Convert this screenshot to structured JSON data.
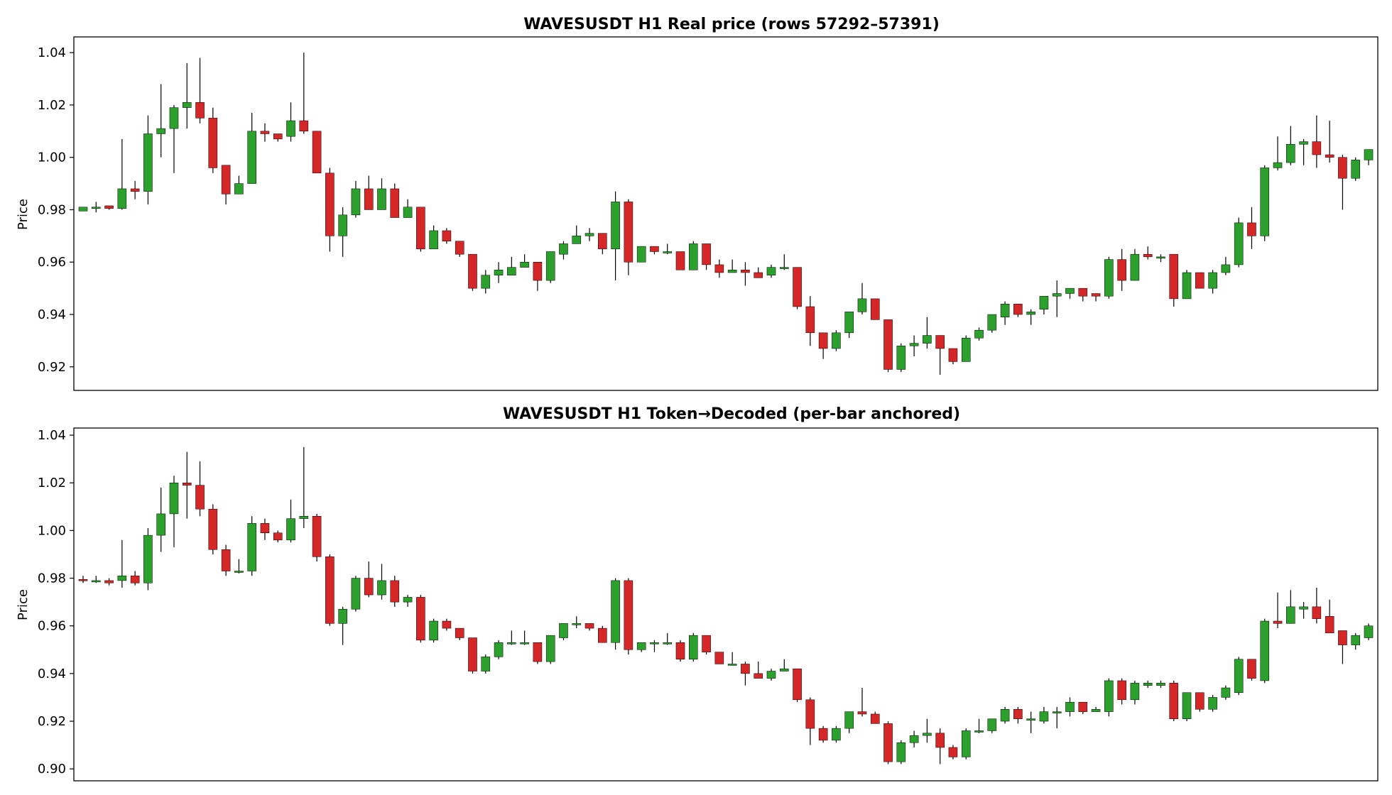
{
  "colors": {
    "up": "#2ca02c",
    "down": "#d62728",
    "wick": "#000000"
  },
  "chart_data": [
    {
      "type": "candlestick",
      "title": "WAVESUSDT H1  Real price  (rows 57292–57391)",
      "ylabel": "Price",
      "ylim": [
        0.911,
        1.046
      ],
      "yticks": [
        0.92,
        0.94,
        0.96,
        0.98,
        1.0,
        1.02,
        1.04
      ],
      "ytick_labels": [
        "0.92",
        "0.94",
        "0.96",
        "0.98",
        "1.00",
        "1.02",
        "1.04"
      ],
      "grid": false,
      "candles": [
        [
          0.9795,
          0.981,
          0.9795,
          0.981
        ],
        [
          0.981,
          0.983,
          0.979,
          0.981
        ],
        [
          0.9815,
          0.9815,
          0.98,
          0.9805
        ],
        [
          0.9805,
          1.007,
          0.98,
          0.988
        ],
        [
          0.988,
          0.991,
          0.984,
          0.987
        ],
        [
          0.987,
          1.016,
          0.982,
          1.009
        ],
        [
          1.009,
          1.028,
          1.0,
          1.011
        ],
        [
          1.011,
          1.02,
          0.994,
          1.019
        ],
        [
          1.019,
          1.036,
          1.011,
          1.021
        ],
        [
          1.021,
          1.038,
          1.013,
          1.015
        ],
        [
          1.015,
          1.019,
          0.994,
          0.996
        ],
        [
          0.997,
          0.997,
          0.982,
          0.986
        ],
        [
          0.986,
          0.993,
          0.986,
          0.99
        ],
        [
          0.99,
          1.017,
          0.99,
          1.01
        ],
        [
          1.01,
          1.013,
          1.006,
          1.009
        ],
        [
          1.009,
          1.009,
          1.006,
          1.007
        ],
        [
          1.008,
          1.021,
          1.006,
          1.014
        ],
        [
          1.014,
          1.04,
          1.009,
          1.01
        ],
        [
          1.01,
          1.01,
          0.994,
          0.994
        ],
        [
          0.994,
          0.996,
          0.964,
          0.97
        ],
        [
          0.97,
          0.981,
          0.962,
          0.978
        ],
        [
          0.978,
          0.991,
          0.977,
          0.988
        ],
        [
          0.988,
          0.993,
          0.98,
          0.98
        ],
        [
          0.98,
          0.992,
          0.98,
          0.988
        ],
        [
          0.988,
          0.99,
          0.977,
          0.977
        ],
        [
          0.977,
          0.984,
          0.977,
          0.981
        ],
        [
          0.981,
          0.981,
          0.964,
          0.965
        ],
        [
          0.965,
          0.974,
          0.965,
          0.972
        ],
        [
          0.972,
          0.973,
          0.967,
          0.968
        ],
        [
          0.968,
          0.968,
          0.962,
          0.963
        ],
        [
          0.963,
          0.963,
          0.949,
          0.95
        ],
        [
          0.95,
          0.957,
          0.948,
          0.955
        ],
        [
          0.955,
          0.96,
          0.952,
          0.957
        ],
        [
          0.955,
          0.962,
          0.955,
          0.958
        ],
        [
          0.958,
          0.963,
          0.958,
          0.96
        ],
        [
          0.96,
          0.96,
          0.949,
          0.953
        ],
        [
          0.953,
          0.964,
          0.952,
          0.964
        ],
        [
          0.963,
          0.968,
          0.961,
          0.967
        ],
        [
          0.967,
          0.974,
          0.967,
          0.97
        ],
        [
          0.97,
          0.973,
          0.968,
          0.971
        ],
        [
          0.971,
          0.971,
          0.963,
          0.965
        ],
        [
          0.965,
          0.987,
          0.953,
          0.983
        ],
        [
          0.983,
          0.984,
          0.955,
          0.96
        ],
        [
          0.96,
          0.966,
          0.96,
          0.966
        ],
        [
          0.966,
          0.966,
          0.963,
          0.964
        ],
        [
          0.964,
          0.967,
          0.963,
          0.964
        ],
        [
          0.964,
          0.964,
          0.957,
          0.957
        ],
        [
          0.957,
          0.968,
          0.957,
          0.967
        ],
        [
          0.967,
          0.967,
          0.957,
          0.959
        ],
        [
          0.959,
          0.961,
          0.954,
          0.956
        ],
        [
          0.956,
          0.961,
          0.956,
          0.957
        ],
        [
          0.957,
          0.96,
          0.951,
          0.956
        ],
        [
          0.956,
          0.958,
          0.954,
          0.954
        ],
        [
          0.955,
          0.959,
          0.954,
          0.958
        ],
        [
          0.958,
          0.963,
          0.957,
          0.958
        ],
        [
          0.958,
          0.958,
          0.942,
          0.943
        ],
        [
          0.943,
          0.947,
          0.928,
          0.933
        ],
        [
          0.933,
          0.933,
          0.923,
          0.927
        ],
        [
          0.927,
          0.934,
          0.926,
          0.933
        ],
        [
          0.933,
          0.941,
          0.931,
          0.941
        ],
        [
          0.941,
          0.952,
          0.94,
          0.946
        ],
        [
          0.946,
          0.946,
          0.938,
          0.938
        ],
        [
          0.938,
          0.938,
          0.918,
          0.919
        ],
        [
          0.919,
          0.929,
          0.918,
          0.928
        ],
        [
          0.928,
          0.932,
          0.924,
          0.929
        ],
        [
          0.929,
          0.939,
          0.927,
          0.932
        ],
        [
          0.932,
          0.932,
          0.917,
          0.927
        ],
        [
          0.927,
          0.927,
          0.921,
          0.922
        ],
        [
          0.922,
          0.932,
          0.922,
          0.931
        ],
        [
          0.931,
          0.935,
          0.93,
          0.934
        ],
        [
          0.934,
          0.94,
          0.933,
          0.94
        ],
        [
          0.939,
          0.945,
          0.936,
          0.944
        ],
        [
          0.944,
          0.944,
          0.939,
          0.94
        ],
        [
          0.94,
          0.942,
          0.936,
          0.941
        ],
        [
          0.942,
          0.947,
          0.94,
          0.947
        ],
        [
          0.947,
          0.953,
          0.939,
          0.948
        ],
        [
          0.948,
          0.95,
          0.946,
          0.95
        ],
        [
          0.95,
          0.95,
          0.945,
          0.947
        ],
        [
          0.948,
          0.948,
          0.945,
          0.947
        ],
        [
          0.947,
          0.962,
          0.946,
          0.961
        ],
        [
          0.961,
          0.965,
          0.949,
          0.953
        ],
        [
          0.953,
          0.965,
          0.953,
          0.963
        ],
        [
          0.963,
          0.966,
          0.961,
          0.962
        ],
        [
          0.962,
          0.963,
          0.96,
          0.962
        ],
        [
          0.963,
          0.963,
          0.943,
          0.946
        ],
        [
          0.946,
          0.957,
          0.946,
          0.956
        ],
        [
          0.956,
          0.956,
          0.95,
          0.95
        ],
        [
          0.95,
          0.957,
          0.948,
          0.956
        ],
        [
          0.956,
          0.962,
          0.955,
          0.959
        ],
        [
          0.959,
          0.977,
          0.958,
          0.975
        ],
        [
          0.975,
          0.981,
          0.965,
          0.97
        ],
        [
          0.97,
          0.997,
          0.968,
          0.996
        ],
        [
          0.996,
          1.008,
          0.995,
          0.998
        ],
        [
          0.998,
          1.012,
          0.997,
          1.005
        ],
        [
          1.005,
          1.007,
          0.997,
          1.006
        ],
        [
          1.006,
          1.016,
          0.996,
          1.001
        ],
        [
          1.001,
          1.014,
          0.998,
          1.0
        ],
        [
          1.0,
          1.001,
          0.98,
          0.992
        ],
        [
          0.992,
          1.0,
          0.991,
          0.999
        ],
        [
          0.999,
          1.003,
          0.997,
          1.003
        ]
      ]
    },
    {
      "type": "candlestick",
      "title": "WAVESUSDT H1  Token→Decoded (per-bar anchored)",
      "ylabel": "Price",
      "ylim": [
        0.895,
        1.043
      ],
      "yticks": [
        0.9,
        0.92,
        0.94,
        0.96,
        0.98,
        1.0,
        1.02,
        1.04
      ],
      "ytick_labels": [
        "0.90",
        "0.92",
        "0.94",
        "0.96",
        "0.98",
        "1.00",
        "1.02",
        "1.04"
      ],
      "grid": false,
      "candles": [
        [
          0.9795,
          0.981,
          0.978,
          0.979
        ],
        [
          0.979,
          0.981,
          0.978,
          0.979
        ],
        [
          0.979,
          0.98,
          0.977,
          0.978
        ],
        [
          0.979,
          0.996,
          0.976,
          0.981
        ],
        [
          0.981,
          0.983,
          0.977,
          0.978
        ],
        [
          0.978,
          1.001,
          0.975,
          0.998
        ],
        [
          0.998,
          1.018,
          0.991,
          1.007
        ],
        [
          1.007,
          1.023,
          0.993,
          1.02
        ],
        [
          1.02,
          1.033,
          1.005,
          1.019
        ],
        [
          1.019,
          1.029,
          1.006,
          1.009
        ],
        [
          1.009,
          1.011,
          0.99,
          0.992
        ],
        [
          0.992,
          0.994,
          0.981,
          0.983
        ],
        [
          0.983,
          0.988,
          0.982,
          0.983
        ],
        [
          0.983,
          1.006,
          0.981,
          1.003
        ],
        [
          1.003,
          1.005,
          0.996,
          0.999
        ],
        [
          0.999,
          1.0,
          0.995,
          0.996
        ],
        [
          0.996,
          1.013,
          0.995,
          1.005
        ],
        [
          1.005,
          1.035,
          1.001,
          1.006
        ],
        [
          1.006,
          1.007,
          0.987,
          0.989
        ],
        [
          0.989,
          0.99,
          0.96,
          0.961
        ],
        [
          0.961,
          0.968,
          0.952,
          0.967
        ],
        [
          0.967,
          0.981,
          0.966,
          0.98
        ],
        [
          0.98,
          0.987,
          0.972,
          0.973
        ],
        [
          0.973,
          0.986,
          0.971,
          0.979
        ],
        [
          0.979,
          0.981,
          0.968,
          0.97
        ],
        [
          0.97,
          0.973,
          0.968,
          0.972
        ],
        [
          0.972,
          0.973,
          0.953,
          0.954
        ],
        [
          0.954,
          0.963,
          0.953,
          0.962
        ],
        [
          0.962,
          0.963,
          0.958,
          0.959
        ],
        [
          0.959,
          0.959,
          0.954,
          0.955
        ],
        [
          0.955,
          0.955,
          0.94,
          0.941
        ],
        [
          0.941,
          0.948,
          0.94,
          0.947
        ],
        [
          0.947,
          0.954,
          0.946,
          0.953
        ],
        [
          0.953,
          0.958,
          0.952,
          0.953
        ],
        [
          0.953,
          0.958,
          0.952,
          0.953
        ],
        [
          0.953,
          0.953,
          0.944,
          0.945
        ],
        [
          0.945,
          0.956,
          0.944,
          0.956
        ],
        [
          0.955,
          0.961,
          0.954,
          0.961
        ],
        [
          0.961,
          0.964,
          0.959,
          0.961
        ],
        [
          0.961,
          0.961,
          0.958,
          0.959
        ],
        [
          0.959,
          0.96,
          0.953,
          0.953
        ],
        [
          0.953,
          0.98,
          0.95,
          0.979
        ],
        [
          0.979,
          0.98,
          0.948,
          0.95
        ],
        [
          0.95,
          0.953,
          0.949,
          0.953
        ],
        [
          0.953,
          0.954,
          0.949,
          0.953
        ],
        [
          0.953,
          0.957,
          0.952,
          0.953
        ],
        [
          0.953,
          0.954,
          0.945,
          0.946
        ],
        [
          0.946,
          0.957,
          0.945,
          0.956
        ],
        [
          0.956,
          0.956,
          0.948,
          0.949
        ],
        [
          0.949,
          0.949,
          0.944,
          0.944
        ],
        [
          0.944,
          0.949,
          0.944,
          0.944
        ],
        [
          0.944,
          0.945,
          0.935,
          0.94
        ],
        [
          0.94,
          0.945,
          0.938,
          0.938
        ],
        [
          0.938,
          0.942,
          0.937,
          0.941
        ],
        [
          0.941,
          0.946,
          0.941,
          0.942
        ],
        [
          0.942,
          0.942,
          0.928,
          0.929
        ],
        [
          0.929,
          0.93,
          0.91,
          0.917
        ],
        [
          0.917,
          0.918,
          0.911,
          0.912
        ],
        [
          0.912,
          0.918,
          0.911,
          0.917
        ],
        [
          0.917,
          0.924,
          0.915,
          0.924
        ],
        [
          0.924,
          0.934,
          0.922,
          0.923
        ],
        [
          0.923,
          0.924,
          0.919,
          0.919
        ],
        [
          0.919,
          0.92,
          0.902,
          0.903
        ],
        [
          0.903,
          0.912,
          0.902,
          0.911
        ],
        [
          0.911,
          0.916,
          0.909,
          0.914
        ],
        [
          0.914,
          0.921,
          0.911,
          0.915
        ],
        [
          0.915,
          0.917,
          0.902,
          0.909
        ],
        [
          0.909,
          0.91,
          0.904,
          0.905
        ],
        [
          0.905,
          0.917,
          0.904,
          0.916
        ],
        [
          0.916,
          0.921,
          0.915,
          0.916
        ],
        [
          0.916,
          0.921,
          0.915,
          0.921
        ],
        [
          0.92,
          0.926,
          0.919,
          0.925
        ],
        [
          0.925,
          0.926,
          0.919,
          0.921
        ],
        [
          0.921,
          0.924,
          0.915,
          0.921
        ],
        [
          0.92,
          0.926,
          0.919,
          0.924
        ],
        [
          0.924,
          0.926,
          0.917,
          0.924
        ],
        [
          0.924,
          0.93,
          0.922,
          0.928
        ],
        [
          0.928,
          0.928,
          0.923,
          0.924
        ],
        [
          0.924,
          0.926,
          0.924,
          0.925
        ],
        [
          0.924,
          0.938,
          0.922,
          0.937
        ],
        [
          0.937,
          0.938,
          0.927,
          0.929
        ],
        [
          0.929,
          0.937,
          0.927,
          0.936
        ],
        [
          0.935,
          0.937,
          0.934,
          0.936
        ],
        [
          0.935,
          0.937,
          0.934,
          0.936
        ],
        [
          0.936,
          0.937,
          0.92,
          0.921
        ],
        [
          0.921,
          0.932,
          0.92,
          0.932
        ],
        [
          0.932,
          0.932,
          0.924,
          0.925
        ],
        [
          0.925,
          0.931,
          0.924,
          0.93
        ],
        [
          0.93,
          0.935,
          0.929,
          0.934
        ],
        [
          0.932,
          0.947,
          0.931,
          0.946
        ],
        [
          0.946,
          0.946,
          0.937,
          0.938
        ],
        [
          0.937,
          0.963,
          0.936,
          0.962
        ],
        [
          0.962,
          0.974,
          0.959,
          0.961
        ],
        [
          0.961,
          0.975,
          0.962,
          0.968
        ],
        [
          0.967,
          0.97,
          0.963,
          0.968
        ],
        [
          0.968,
          0.976,
          0.961,
          0.963
        ],
        [
          0.964,
          0.971,
          0.957,
          0.957
        ],
        [
          0.958,
          0.958,
          0.944,
          0.952
        ],
        [
          0.952,
          0.957,
          0.95,
          0.956
        ],
        [
          0.955,
          0.961,
          0.954,
          0.96
        ]
      ]
    }
  ]
}
